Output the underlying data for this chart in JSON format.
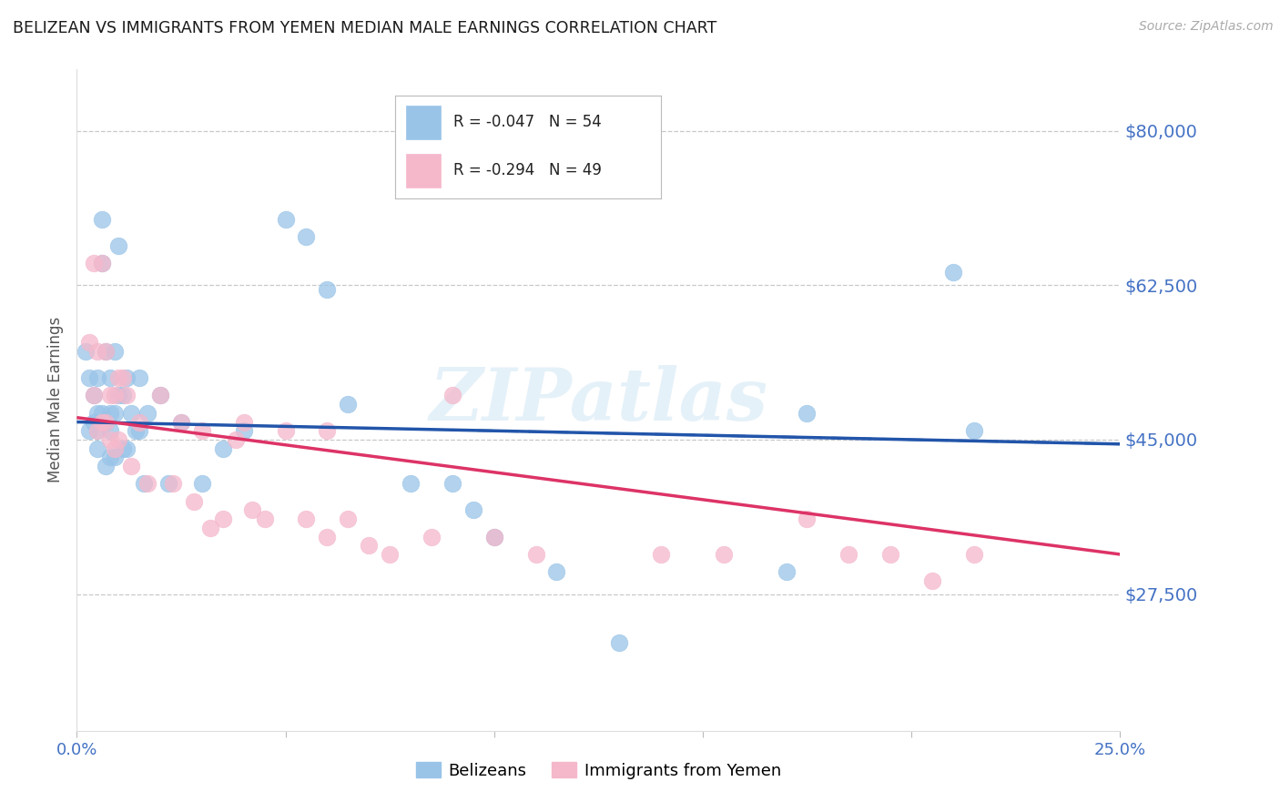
{
  "title": "BELIZEAN VS IMMIGRANTS FROM YEMEN MEDIAN MALE EARNINGS CORRELATION CHART",
  "source": "Source: ZipAtlas.com",
  "ylabel": "Median Male Earnings",
  "xlim": [
    0.0,
    0.25
  ],
  "ylim": [
    12000,
    87000
  ],
  "ytick_vals": [
    27500,
    45000,
    62500,
    80000
  ],
  "ytick_labels": [
    "$27,500",
    "$45,000",
    "$62,500",
    "$80,000"
  ],
  "xtick_vals": [
    0.0,
    0.05,
    0.1,
    0.15,
    0.2,
    0.25
  ],
  "xtick_labels": [
    "0.0%",
    "",
    "",
    "",
    "",
    "25.0%"
  ],
  "legend_r1": "-0.047",
  "legend_n1": "54",
  "legend_r2": "-0.294",
  "legend_n2": "49",
  "color_blue": "#99c4e8",
  "color_blue_edge": "#99c4e8",
  "color_pink": "#f5b8cb",
  "color_pink_edge": "#f5b8cb",
  "color_blue_line": "#2255aa",
  "color_pink_line": "#dd3366",
  "color_ytick": "#4472c4",
  "color_xtick": "#4472c4",
  "watermark": "ZIPatlas",
  "belizean_x": [
    0.002,
    0.003,
    0.003,
    0.004,
    0.004,
    0.005,
    0.005,
    0.005,
    0.005,
    0.006,
    0.006,
    0.006,
    0.007,
    0.007,
    0.007,
    0.008,
    0.008,
    0.008,
    0.008,
    0.009,
    0.009,
    0.009,
    0.01,
    0.01,
    0.011,
    0.011,
    0.012,
    0.012,
    0.013,
    0.014,
    0.015,
    0.015,
    0.016,
    0.017,
    0.02,
    0.022,
    0.025,
    0.03,
    0.035,
    0.04,
    0.05,
    0.055,
    0.06,
    0.065,
    0.08,
    0.09,
    0.095,
    0.1,
    0.115,
    0.13,
    0.17,
    0.175,
    0.21,
    0.215
  ],
  "belizean_y": [
    55000,
    46000,
    52000,
    50000,
    47000,
    52000,
    48000,
    46000,
    44000,
    70000,
    65000,
    48000,
    55000,
    47000,
    42000,
    52000,
    48000,
    46000,
    43000,
    55000,
    48000,
    43000,
    67000,
    50000,
    50000,
    44000,
    52000,
    44000,
    48000,
    46000,
    52000,
    46000,
    40000,
    48000,
    50000,
    40000,
    47000,
    40000,
    44000,
    46000,
    70000,
    68000,
    62000,
    49000,
    40000,
    40000,
    37000,
    34000,
    30000,
    22000,
    30000,
    48000,
    64000,
    46000
  ],
  "yemen_x": [
    0.003,
    0.004,
    0.004,
    0.005,
    0.005,
    0.006,
    0.006,
    0.007,
    0.007,
    0.008,
    0.008,
    0.009,
    0.009,
    0.01,
    0.01,
    0.011,
    0.012,
    0.013,
    0.015,
    0.017,
    0.02,
    0.023,
    0.025,
    0.028,
    0.03,
    0.032,
    0.035,
    0.038,
    0.04,
    0.042,
    0.045,
    0.05,
    0.055,
    0.06,
    0.065,
    0.07,
    0.075,
    0.085,
    0.09,
    0.1,
    0.11,
    0.14,
    0.155,
    0.175,
    0.185,
    0.195,
    0.205,
    0.215,
    0.06
  ],
  "yemen_y": [
    56000,
    65000,
    50000,
    55000,
    46000,
    65000,
    47000,
    55000,
    47000,
    50000,
    45000,
    50000,
    44000,
    52000,
    45000,
    52000,
    50000,
    42000,
    47000,
    40000,
    50000,
    40000,
    47000,
    38000,
    46000,
    35000,
    36000,
    45000,
    47000,
    37000,
    36000,
    46000,
    36000,
    46000,
    36000,
    33000,
    32000,
    34000,
    50000,
    34000,
    32000,
    32000,
    32000,
    36000,
    32000,
    32000,
    29000,
    32000,
    34000
  ]
}
